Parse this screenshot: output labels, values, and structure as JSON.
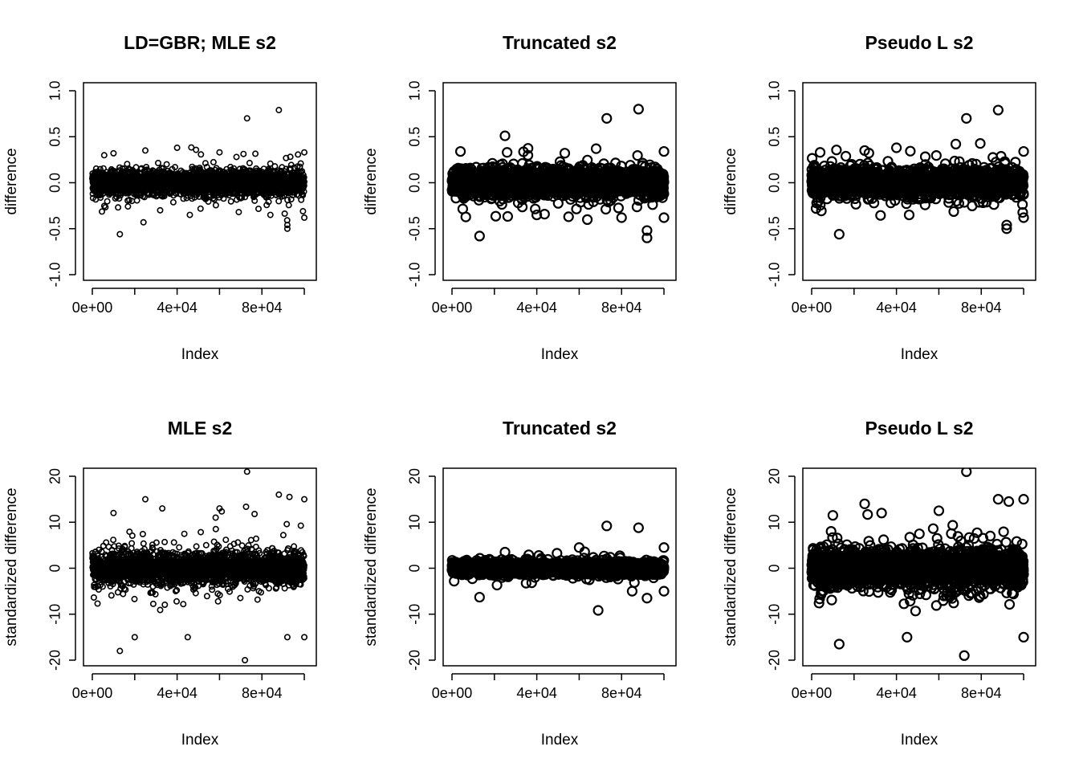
{
  "chart_data": [
    {
      "id": "p1",
      "type": "scatter",
      "title": "LD=GBR; MLE s2",
      "xlabel": "Index",
      "ylabel": "difference",
      "xlim": [
        0,
        100000
      ],
      "ylim": [
        -1.0,
        1.0
      ],
      "xticks": [
        0,
        20000,
        40000,
        60000,
        80000,
        100000
      ],
      "xtick_labels": [
        "0e+00",
        "",
        "4e+04",
        "",
        "8e+04",
        ""
      ],
      "yticks": [
        -1.0,
        -0.5,
        0.0,
        0.5,
        1.0
      ],
      "ytick_labels": [
        "-1.0",
        "-0.5",
        "0.0",
        "0.5",
        "1.0"
      ],
      "n_points": 100000,
      "bulk_spread": 0.12,
      "outliers": [
        {
          "x": 13000,
          "y": -0.56
        },
        {
          "x": 25000,
          "y": 0.35
        },
        {
          "x": 40000,
          "y": 0.38
        },
        {
          "x": 46000,
          "y": -0.35
        },
        {
          "x": 60000,
          "y": 0.33
        },
        {
          "x": 68000,
          "y": 0.28
        },
        {
          "x": 73000,
          "y": 0.7
        },
        {
          "x": 88000,
          "y": 0.79
        },
        {
          "x": 92000,
          "y": -0.5
        },
        {
          "x": 92000,
          "y": -0.46
        },
        {
          "x": 100000,
          "y": 0.33
        },
        {
          "x": 100000,
          "y": -0.38
        },
        {
          "x": 10000,
          "y": 0.32
        },
        {
          "x": 32000,
          "y": -0.3
        },
        {
          "x": 84000,
          "y": -0.35
        }
      ],
      "marker_size": 3.2
    },
    {
      "id": "p2",
      "type": "scatter",
      "title": "Truncated s2",
      "xlabel": "Index",
      "ylabel": "difference",
      "xlim": [
        0,
        100000
      ],
      "ylim": [
        -1.0,
        1.0
      ],
      "xticks": [
        0,
        20000,
        40000,
        60000,
        80000,
        100000
      ],
      "xtick_labels": [
        "0e+00",
        "",
        "4e+04",
        "",
        "8e+04",
        ""
      ],
      "yticks": [
        -1.0,
        -0.5,
        0.0,
        0.5,
        1.0
      ],
      "ytick_labels": [
        "-1.0",
        "-0.5",
        "0.0",
        "0.5",
        "1.0"
      ],
      "n_points": 100000,
      "bulk_spread": 0.12,
      "outliers": [
        {
          "x": 13000,
          "y": -0.58
        },
        {
          "x": 25000,
          "y": 0.51
        },
        {
          "x": 26000,
          "y": 0.33
        },
        {
          "x": 40000,
          "y": -0.35
        },
        {
          "x": 68000,
          "y": 0.37
        },
        {
          "x": 73000,
          "y": 0.7
        },
        {
          "x": 88000,
          "y": 0.8
        },
        {
          "x": 92000,
          "y": -0.6
        },
        {
          "x": 92000,
          "y": -0.52
        },
        {
          "x": 100000,
          "y": 0.34
        },
        {
          "x": 100000,
          "y": -0.38
        },
        {
          "x": 4000,
          "y": 0.34
        },
        {
          "x": 55000,
          "y": -0.37
        },
        {
          "x": 80000,
          "y": -0.38
        }
      ],
      "marker_size": 5.5
    },
    {
      "id": "p3",
      "type": "scatter",
      "title": "Pseudo L s2",
      "xlabel": "Index",
      "ylabel": "difference",
      "xlim": [
        0,
        100000
      ],
      "ylim": [
        -1.0,
        1.0
      ],
      "xticks": [
        0,
        20000,
        40000,
        60000,
        80000,
        100000
      ],
      "xtick_labels": [
        "0e+00",
        "",
        "4e+04",
        "",
        "8e+04",
        ""
      ],
      "yticks": [
        -1.0,
        -0.5,
        0.0,
        0.5,
        1.0
      ],
      "ytick_labels": [
        "-1.0",
        "-0.5",
        "0.0",
        "0.5",
        "1.0"
      ],
      "n_points": 100000,
      "bulk_spread": 0.12,
      "outliers": [
        {
          "x": 13000,
          "y": -0.56
        },
        {
          "x": 25000,
          "y": 0.35
        },
        {
          "x": 40000,
          "y": 0.38
        },
        {
          "x": 68000,
          "y": 0.42
        },
        {
          "x": 73000,
          "y": 0.7
        },
        {
          "x": 88000,
          "y": 0.79
        },
        {
          "x": 92000,
          "y": -0.5
        },
        {
          "x": 92000,
          "y": -0.46
        },
        {
          "x": 100000,
          "y": 0.34
        },
        {
          "x": 100000,
          "y": -0.38
        },
        {
          "x": 4000,
          "y": 0.33
        },
        {
          "x": 46000,
          "y": -0.35
        }
      ],
      "marker_size": 5.5
    },
    {
      "id": "p4",
      "type": "scatter",
      "title": "MLE s2",
      "xlabel": "Index",
      "ylabel": "standardized difference",
      "xlim": [
        0,
        100000
      ],
      "ylim": [
        -22,
        23
      ],
      "xticks": [
        0,
        20000,
        40000,
        60000,
        80000,
        100000
      ],
      "xtick_labels": [
        "0e+00",
        "",
        "4e+04",
        "",
        "8e+04",
        ""
      ],
      "yticks": [
        -20,
        -10,
        0,
        10,
        20
      ],
      "ytick_labels": [
        "-20",
        "-10",
        "0",
        "10",
        "20"
      ],
      "n_points": 100000,
      "bulk_spread": 3.2,
      "outliers": [
        {
          "x": 13000,
          "y": -18
        },
        {
          "x": 25000,
          "y": 15
        },
        {
          "x": 73000,
          "y": 21
        },
        {
          "x": 72000,
          "y": -20
        },
        {
          "x": 88000,
          "y": 16
        },
        {
          "x": 93000,
          "y": 15.5
        },
        {
          "x": 100000,
          "y": 15
        },
        {
          "x": 100000,
          "y": -15
        },
        {
          "x": 20000,
          "y": -15
        },
        {
          "x": 45000,
          "y": -15
        },
        {
          "x": 92000,
          "y": -15
        },
        {
          "x": 60000,
          "y": 13
        },
        {
          "x": 33000,
          "y": 13
        },
        {
          "x": 10000,
          "y": 12
        }
      ],
      "marker_size": 3.2
    },
    {
      "id": "p5",
      "type": "scatter",
      "title": "Truncated s2",
      "xlabel": "Index",
      "ylabel": "standardized difference",
      "xlim": [
        0,
        100000
      ],
      "ylim": [
        -22,
        23
      ],
      "xticks": [
        0,
        20000,
        40000,
        60000,
        80000,
        100000
      ],
      "xtick_labels": [
        "0e+00",
        "",
        "4e+04",
        "",
        "8e+04",
        ""
      ],
      "yticks": [
        -20,
        -10,
        0,
        10,
        20
      ],
      "ytick_labels": [
        "-20",
        "-10",
        "0",
        "10",
        "20"
      ],
      "n_points": 100000,
      "bulk_spread": 1.1,
      "outliers": [
        {
          "x": 73000,
          "y": 9.2
        },
        {
          "x": 88000,
          "y": 8.8
        },
        {
          "x": 13000,
          "y": -6.3
        },
        {
          "x": 92000,
          "y": -6.5
        },
        {
          "x": 100000,
          "y": 4.5
        },
        {
          "x": 100000,
          "y": -5
        },
        {
          "x": 60000,
          "y": 4.5
        },
        {
          "x": 25000,
          "y": 3.5
        },
        {
          "x": 85000,
          "y": -5
        }
      ],
      "marker_size": 5.5
    },
    {
      "id": "p6",
      "type": "scatter",
      "title": "Pseudo L s2",
      "xlabel": "Index",
      "ylabel": "standardized difference",
      "xlim": [
        0,
        100000
      ],
      "ylim": [
        -22,
        23
      ],
      "xticks": [
        0,
        20000,
        40000,
        60000,
        80000,
        100000
      ],
      "xtick_labels": [
        "0e+00",
        "",
        "4e+04",
        "",
        "8e+04",
        ""
      ],
      "yticks": [
        -20,
        -10,
        0,
        10,
        20
      ],
      "ytick_labels": [
        "-20",
        "-10",
        "0",
        "10",
        "20"
      ],
      "n_points": 100000,
      "bulk_spread": 3.2,
      "outliers": [
        {
          "x": 73000,
          "y": 21
        },
        {
          "x": 72000,
          "y": -19
        },
        {
          "x": 13000,
          "y": -16.5
        },
        {
          "x": 88000,
          "y": 15
        },
        {
          "x": 93000,
          "y": 14.5
        },
        {
          "x": 100000,
          "y": 15
        },
        {
          "x": 100000,
          "y": -15
        },
        {
          "x": 45000,
          "y": -15
        },
        {
          "x": 25000,
          "y": 14
        },
        {
          "x": 33000,
          "y": 12
        },
        {
          "x": 60000,
          "y": 12.5
        },
        {
          "x": 10000,
          "y": 11.5
        }
      ],
      "marker_size": 5.5
    }
  ]
}
